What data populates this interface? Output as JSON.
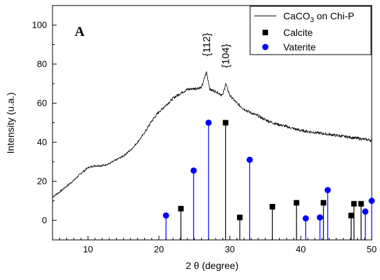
{
  "chart_data": {
    "type": "line",
    "panel_label": "A",
    "xlabel": "2 θ (degree)",
    "ylabel": "Intensity (u.a.)",
    "xlim": [
      5,
      50
    ],
    "ylim": [
      -10,
      110
    ],
    "xticks": [
      10,
      20,
      30,
      40,
      50
    ],
    "yticks": [
      0,
      20,
      40,
      60,
      80,
      100
    ],
    "grid": false,
    "legend_position": "top-right",
    "legend": {
      "line_label_main": "CaCO",
      "line_label_sub": "3",
      "line_label_rest": " on Chi-P",
      "calcite_label": "Calcite",
      "vaterite_label": "Vaterite"
    },
    "colors": {
      "curve": "#000000",
      "calcite": "#000000",
      "vaterite": "#0000ff",
      "stem_calcite": "#000000",
      "stem_vaterite": "#0000ff"
    },
    "annotations": [
      {
        "text": "{112}",
        "x": 26.7
      },
      {
        "text": "{104}",
        "x": 29.4
      }
    ],
    "curve": {
      "name": "CaCO3 on Chi-P",
      "x": [
        5,
        6,
        7,
        8,
        9,
        10,
        11,
        12,
        13,
        14,
        15,
        16,
        17,
        18,
        19,
        20,
        21,
        22,
        23,
        24,
        25,
        26,
        26.7,
        27.2,
        28,
        29,
        29.4,
        30,
        31,
        32,
        33,
        34,
        35,
        36,
        37,
        38,
        39,
        40,
        41,
        42,
        43,
        44,
        45,
        46,
        47,
        48,
        49,
        50
      ],
      "y": [
        12,
        14.5,
        17.5,
        20.5,
        24,
        27,
        28,
        28,
        29,
        31,
        33,
        36,
        40,
        45,
        51,
        55.5,
        59,
        62.5,
        65,
        67,
        67.5,
        68,
        76,
        67,
        66,
        64,
        70,
        64,
        60,
        57,
        55,
        53.5,
        51.5,
        50,
        49,
        48,
        47,
        46,
        45.5,
        45,
        44.5,
        44,
        43.5,
        43,
        42.5,
        42,
        41.5,
        41
      ]
    },
    "series": [
      {
        "name": "Calcite",
        "x": [
          23.1,
          29.4,
          31.4,
          36.0,
          39.4,
          43.2,
          47.1,
          47.5,
          48.5
        ],
        "y": [
          6,
          50,
          1.5,
          7,
          9,
          9,
          2.5,
          8.5,
          8.5
        ]
      },
      {
        "name": "Vaterite",
        "x": [
          21.0,
          24.9,
          27.0,
          32.8,
          40.7,
          42.7,
          43.8,
          49.1,
          50.0
        ],
        "y": [
          2.5,
          25.5,
          50,
          31,
          1,
          1.5,
          15.5,
          4.5,
          10
        ]
      }
    ]
  }
}
